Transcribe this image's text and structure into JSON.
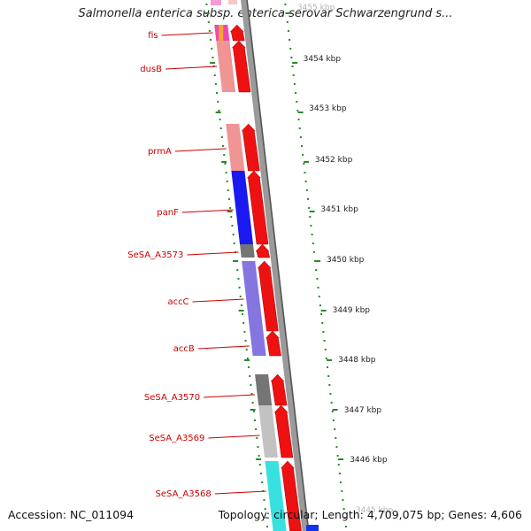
{
  "title": "Salmonella enterica subsp. enterica serovar Schwarzengrund s...",
  "footer": {
    "accession": "Accession: NC_011094",
    "summary": "Topology: circular; Length: 4,709,075 bp; Genes: 4,606"
  },
  "colors": {
    "forward_arrow": "#ee1111",
    "label_line": "#cc0000",
    "tick": "#2a8a2a",
    "backbone": "#9a9a9a"
  },
  "kbp_labels": [
    "3455 kbp",
    "3454 kbp",
    "3453 kbp",
    "3452 kbp",
    "3451 kbp",
    "3450 kbp",
    "3449 kbp",
    "3448 kbp",
    "3447 kbp",
    "3446 kbp",
    "3445 kbp"
  ],
  "genes": [
    {
      "name": "fis",
      "color": "#f0a830"
    },
    {
      "name": "dusB",
      "color": "#ee8888"
    },
    {
      "name": "prmA",
      "color": "#ee8888"
    },
    {
      "name": "panF",
      "color": "#0000ee"
    },
    {
      "name": "SeSA_A3573",
      "color": "#666666"
    },
    {
      "name": "accC",
      "color": "#7766dd"
    },
    {
      "name": "accB",
      "color": "#7766dd"
    },
    {
      "name": "SeSA_A3570",
      "color": "#666666"
    },
    {
      "name": "SeSA_A3569",
      "color": "#bbbbbb"
    },
    {
      "name": "SeSA_A3568",
      "color": "#22dddd"
    }
  ]
}
